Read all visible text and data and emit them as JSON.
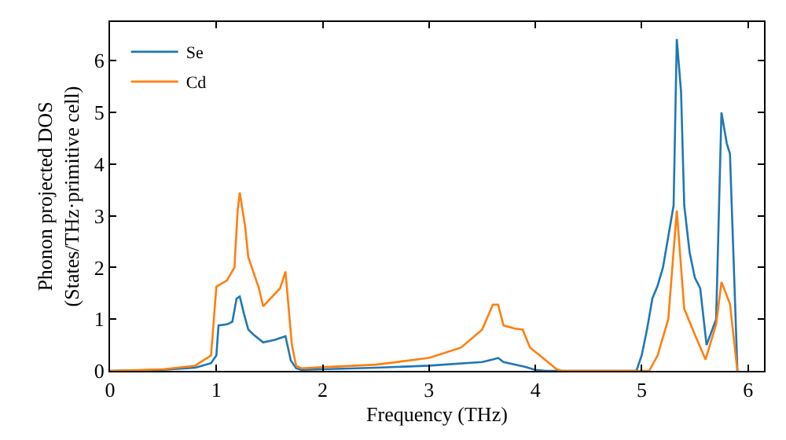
{
  "chart_data": {
    "type": "line",
    "xlabel": "Frequency (THz)",
    "ylabel": "Phonon projected DOS\n(States/THz·primitive cell)",
    "xlim": [
      0,
      6.15
    ],
    "ylim": [
      0,
      6.75
    ],
    "xticks": [
      0,
      1,
      2,
      3,
      4,
      5,
      6
    ],
    "yticks": [
      0,
      1,
      2,
      3,
      4,
      5,
      6
    ],
    "legend": "top left",
    "marker": "none",
    "line_style": "solid",
    "series": [
      {
        "name": "Se",
        "color": "#1f77b4",
        "x": [
          0,
          0.5,
          0.8,
          0.95,
          1.0,
          1.02,
          1.1,
          1.15,
          1.19,
          1.22,
          1.26,
          1.3,
          1.35,
          1.44,
          1.55,
          1.65,
          1.7,
          1.75,
          1.8,
          2.5,
          3.0,
          3.5,
          3.6,
          3.65,
          3.7,
          3.9,
          4.0,
          4.1,
          4.95,
          5.0,
          5.05,
          5.1,
          5.15,
          5.2,
          5.25,
          5.3,
          5.33,
          5.37,
          5.4,
          5.45,
          5.5,
          5.55,
          5.61,
          5.7,
          5.75,
          5.8,
          5.83,
          5.9
        ],
        "values": [
          0,
          0.02,
          0.06,
          0.15,
          0.3,
          0.88,
          0.9,
          0.95,
          1.4,
          1.44,
          1.1,
          0.8,
          0.7,
          0.55,
          0.6,
          0.67,
          0.2,
          0.05,
          0.02,
          0.06,
          0.1,
          0.17,
          0.22,
          0.25,
          0.17,
          0.08,
          0.02,
          0,
          0,
          0.3,
          0.8,
          1.4,
          1.65,
          2.0,
          2.6,
          3.2,
          6.42,
          5.4,
          3.2,
          2.3,
          1.8,
          1.6,
          0.5,
          1.0,
          5.0,
          4.4,
          4.2,
          0
        ]
      },
      {
        "name": "Cd",
        "color": "#ff7f0e",
        "x": [
          0,
          0.5,
          0.8,
          0.95,
          1.0,
          1.1,
          1.17,
          1.2,
          1.22,
          1.27,
          1.3,
          1.4,
          1.44,
          1.6,
          1.65,
          1.71,
          1.75,
          1.8,
          2.0,
          2.5,
          3.0,
          3.3,
          3.5,
          3.6,
          3.65,
          3.7,
          3.8,
          3.88,
          3.95,
          4.1,
          4.2,
          4.25,
          5.07,
          5.15,
          5.25,
          5.33,
          5.4,
          5.5,
          5.6,
          5.7,
          5.75,
          5.83,
          5.9
        ],
        "values": [
          0,
          0.03,
          0.1,
          0.3,
          1.63,
          1.75,
          2.0,
          3.1,
          3.45,
          2.8,
          2.2,
          1.6,
          1.25,
          1.6,
          1.92,
          0.5,
          0.1,
          0.05,
          0.07,
          0.12,
          0.25,
          0.45,
          0.8,
          1.28,
          1.28,
          0.88,
          0.82,
          0.8,
          0.45,
          0.2,
          0.03,
          0,
          0,
          0.3,
          1.0,
          3.1,
          1.2,
          0.7,
          0.22,
          0.9,
          1.72,
          1.3,
          0
        ]
      }
    ]
  }
}
